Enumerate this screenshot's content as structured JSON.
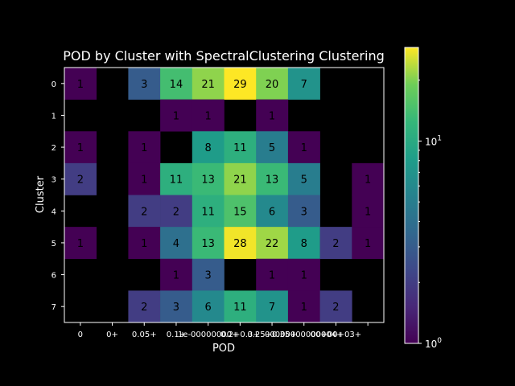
{
  "chart_data": {
    "type": "heatmap",
    "title": "POD by Cluster with SpectralClustering Clustering",
    "xlabel": "POD",
    "ylabel": "Cluster",
    "x_categories": [
      "0",
      "0+",
      "0.05+",
      "0.1+",
      "1e-00000000+",
      "0.2+0.3+",
      "0.25+0.35+",
      "00000000000004+",
      "00+00+03+",
      ""
    ],
    "y_categories": [
      "0",
      "1",
      "2",
      "3",
      "4",
      "5",
      "6",
      "7"
    ],
    "values": [
      [
        1,
        null,
        3,
        14,
        21,
        29,
        20,
        7,
        null,
        null
      ],
      [
        null,
        null,
        null,
        1,
        1,
        null,
        1,
        null,
        null,
        null
      ],
      [
        1,
        null,
        1,
        null,
        8,
        11,
        5,
        1,
        null,
        null
      ],
      [
        2,
        null,
        1,
        11,
        13,
        21,
        13,
        5,
        null,
        1
      ],
      [
        null,
        null,
        2,
        2,
        11,
        15,
        6,
        3,
        null,
        1
      ],
      [
        1,
        null,
        1,
        4,
        13,
        28,
        22,
        8,
        2,
        1
      ],
      [
        null,
        null,
        null,
        1,
        3,
        null,
        1,
        1,
        null,
        null
      ],
      [
        null,
        null,
        2,
        3,
        6,
        11,
        7,
        1,
        2,
        null
      ]
    ],
    "colorbar": {
      "scale": "log",
      "range": [
        1,
        29
      ],
      "colormap": "viridis",
      "ticks": [
        "10^0",
        "10^1"
      ]
    },
    "empty_cell_color": "#000000",
    "annotation_color": "#000000"
  }
}
